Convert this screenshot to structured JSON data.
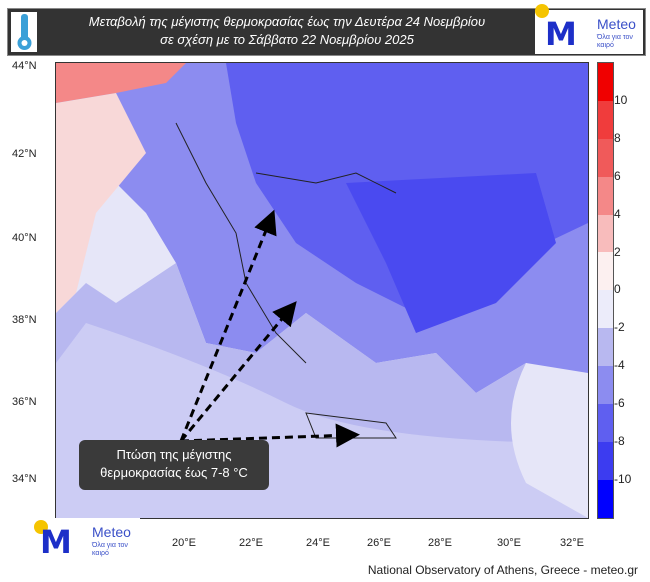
{
  "header": {
    "title_line1": "Μεταβολή της μέγιστης θερμοκρασίας έως την Δευτέρα 24 Νοεμβρίου",
    "title_line2": "σε σχέση με το Σάββατο 22 Νοεμβρίου 2025",
    "icon": "thermometer-icon"
  },
  "logo": {
    "brand": "Meteo",
    "slogan": "Όλα για τον καιρό"
  },
  "map": {
    "lat_ticks": [
      "44°N",
      "42°N",
      "40°N",
      "38°N",
      "36°N",
      "34°N"
    ],
    "lon_ticks": [
      "20°E",
      "22°E",
      "24°E",
      "26°E",
      "28°E",
      "30°E",
      "32°E"
    ],
    "annotation": {
      "line1": "Πτώση της μέγιστης",
      "line2": "θερμοκρασίας έως 7-8 °C"
    }
  },
  "colorbar": {
    "labels": [
      "10",
      "8",
      "6",
      "4",
      "2",
      "0",
      "-2",
      "-4",
      "-6",
      "-8",
      "-10"
    ],
    "colors": [
      "#f00000",
      "#f03c3c",
      "#f05a5a",
      "#f48888",
      "#f8bcbc",
      "#fcf0f0",
      "#ececfa",
      "#b8b8f0",
      "#8c8cf0",
      "#5f5ff0",
      "#3c3cf0",
      "#0000ff"
    ]
  },
  "footer": "National Observatory of Athens, Greece - meteo.gr"
}
